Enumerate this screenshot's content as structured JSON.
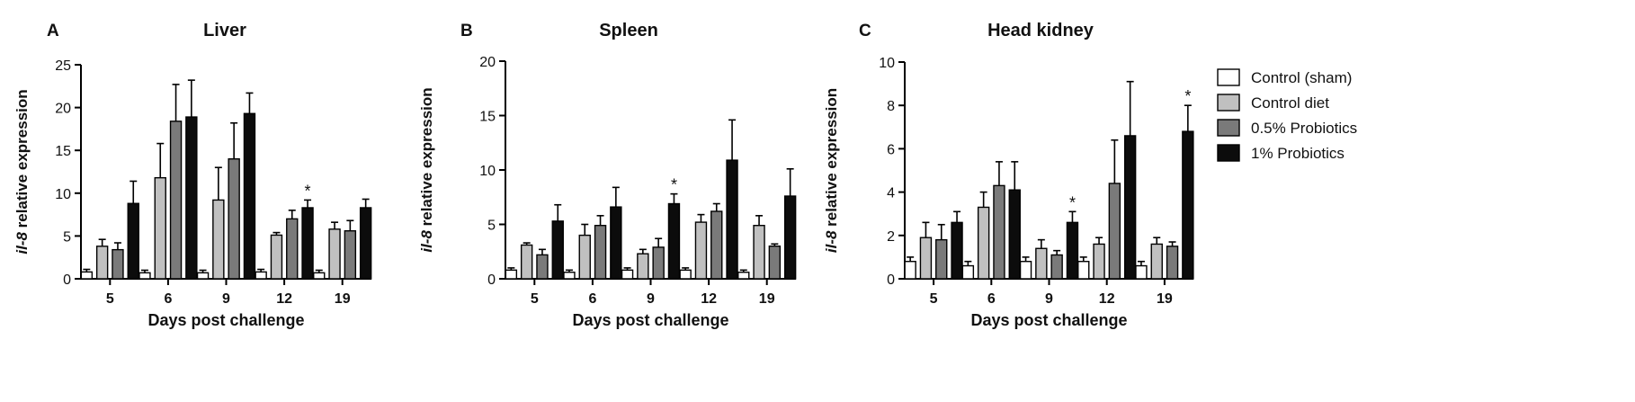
{
  "figure": {
    "legend": {
      "entries": [
        {
          "label": "Control (sham)",
          "color": "#ffffff"
        },
        {
          "label": "Control diet",
          "color": "#c0c0c0"
        },
        {
          "label": "0.5% Probiotics",
          "color": "#7a7a7a"
        },
        {
          "label": "1% Probiotics",
          "color": "#0c0c0c"
        }
      ]
    }
  },
  "chart_data": [
    {
      "type": "bar",
      "panel_letter": "A",
      "title": "Liver",
      "xlabel": "Days post challenge",
      "ylabel_gene": "il-8",
      "ylabel_rest": " relative expression",
      "categories": [
        "5",
        "6",
        "9",
        "12",
        "19"
      ],
      "ylim": [
        0,
        25
      ],
      "yticks": [
        0,
        5,
        10,
        15,
        20,
        25
      ],
      "series": [
        {
          "name": "Control (sham)",
          "values": [
            0.8,
            0.7,
            0.7,
            0.8,
            0.7
          ],
          "errors": [
            0.3,
            0.3,
            0.3,
            0.3,
            0.3
          ]
        },
        {
          "name": "Control diet",
          "values": [
            3.8,
            11.8,
            9.2,
            5.1,
            5.8
          ],
          "errors": [
            0.8,
            4.0,
            3.8,
            0.3,
            0.8
          ]
        },
        {
          "name": "0.5% Probiotics",
          "values": [
            3.4,
            18.4,
            14.0,
            7.0,
            5.6
          ],
          "errors": [
            0.8,
            4.3,
            4.2,
            1.0,
            1.2
          ]
        },
        {
          "name": "1% Probiotics",
          "values": [
            8.8,
            18.9,
            19.3,
            8.3,
            8.3
          ],
          "errors": [
            2.6,
            4.3,
            2.4,
            0.9,
            1.0
          ]
        }
      ],
      "significance": [
        {
          "category": "12",
          "series": "1% Probiotics",
          "label": "*"
        }
      ]
    },
    {
      "type": "bar",
      "panel_letter": "B",
      "title": "Spleen",
      "xlabel": "Days post challenge",
      "ylabel_gene": "il-8",
      "ylabel_rest": " relative expression",
      "categories": [
        "5",
        "6",
        "9",
        "12",
        "19"
      ],
      "ylim": [
        0,
        20
      ],
      "yticks": [
        0,
        5,
        10,
        15,
        20
      ],
      "series": [
        {
          "name": "Control (sham)",
          "values": [
            0.8,
            0.6,
            0.8,
            0.8,
            0.6
          ],
          "errors": [
            0.2,
            0.2,
            0.2,
            0.2,
            0.2
          ]
        },
        {
          "name": "Control diet",
          "values": [
            3.1,
            4.0,
            2.3,
            5.2,
            4.9
          ],
          "errors": [
            0.2,
            1.0,
            0.4,
            0.7,
            0.9
          ]
        },
        {
          "name": "0.5% Probiotics",
          "values": [
            2.2,
            4.9,
            2.9,
            6.2,
            3.0
          ],
          "errors": [
            0.5,
            0.9,
            0.8,
            0.7,
            0.2
          ]
        },
        {
          "name": "1% Probiotics",
          "values": [
            5.3,
            6.6,
            6.9,
            10.9,
            7.6
          ],
          "errors": [
            1.5,
            1.8,
            0.9,
            3.7,
            2.5
          ]
        }
      ],
      "significance": [
        {
          "category": "9",
          "series": "1% Probiotics",
          "label": "*"
        }
      ]
    },
    {
      "type": "bar",
      "panel_letter": "C",
      "title": "Head kidney",
      "xlabel": "Days post challenge",
      "ylabel_gene": "il-8",
      "ylabel_rest": " relative expression",
      "categories": [
        "5",
        "6",
        "9",
        "12",
        "19"
      ],
      "ylim": [
        0,
        10
      ],
      "yticks": [
        0,
        2,
        4,
        6,
        8,
        10
      ],
      "series": [
        {
          "name": "Control (sham)",
          "values": [
            0.8,
            0.6,
            0.8,
            0.8,
            0.6
          ],
          "errors": [
            0.2,
            0.2,
            0.2,
            0.2,
            0.2
          ]
        },
        {
          "name": "Control diet",
          "values": [
            1.9,
            3.3,
            1.4,
            1.6,
            1.6
          ],
          "errors": [
            0.7,
            0.7,
            0.4,
            0.3,
            0.3
          ]
        },
        {
          "name": "0.5% Probiotics",
          "values": [
            1.8,
            4.3,
            1.1,
            4.4,
            1.5
          ],
          "errors": [
            0.7,
            1.1,
            0.2,
            2.0,
            0.2
          ]
        },
        {
          "name": "1% Probiotics",
          "values": [
            2.6,
            4.1,
            2.6,
            6.6,
            6.8
          ],
          "errors": [
            0.5,
            1.3,
            0.5,
            2.5,
            1.2
          ]
        }
      ],
      "significance": [
        {
          "category": "9",
          "series": "1% Probiotics",
          "label": "*"
        },
        {
          "category": "19",
          "series": "1% Probiotics",
          "label": "*"
        }
      ]
    }
  ]
}
